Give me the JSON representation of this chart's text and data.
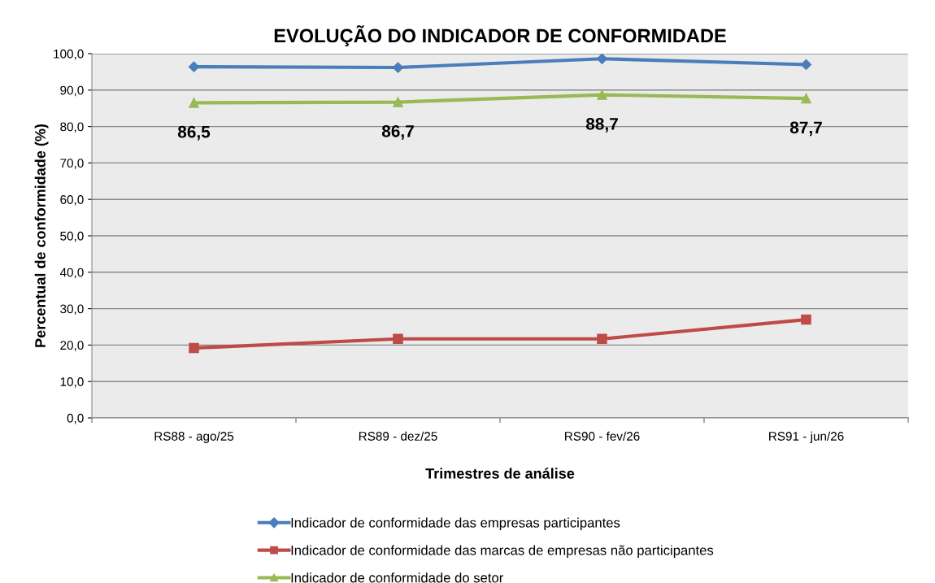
{
  "chart_data": {
    "type": "line",
    "title": "EVOLUÇÃO DO INDICADOR DE CONFORMIDADE",
    "xlabel": "Trimestres de análise",
    "ylabel": "Percentual de conformidade (%)",
    "categories": [
      "RS88 - ago/25",
      "RS89 - dez/25",
      "RS90 - fev/26",
      "RS91 - jun/26"
    ],
    "series": [
      {
        "name": "Indicador de conformidade das empresas participantes",
        "color": "#4a7ebb",
        "marker": "diamond",
        "values": [
          96.4,
          96.2,
          98.6,
          97.0
        ]
      },
      {
        "name": "Indicador de conformidade das marcas de empresas não participantes",
        "color": "#be4b48",
        "marker": "square",
        "values": [
          19.2,
          21.7,
          21.7,
          27.0
        ]
      },
      {
        "name": "Indicador de conformidade do setor",
        "color": "#98b954",
        "marker": "triangle",
        "values": [
          86.5,
          86.7,
          88.7,
          87.7
        ],
        "value_labels": [
          "86,5",
          "86,7",
          "88,7",
          "87,7"
        ]
      }
    ],
    "ylim": [
      0,
      100
    ],
    "yticks": [
      {
        "value": 0,
        "label": "0,0"
      },
      {
        "value": 10,
        "label": "10,0"
      },
      {
        "value": 20,
        "label": "20,0"
      },
      {
        "value": 30,
        "label": "30,0"
      },
      {
        "value": 40,
        "label": "40,0"
      },
      {
        "value": 50,
        "label": "50,0"
      },
      {
        "value": 60,
        "label": "60,0"
      },
      {
        "value": 70,
        "label": "70,0"
      },
      {
        "value": 80,
        "label": "80,0"
      },
      {
        "value": 90,
        "label": "90,0"
      },
      {
        "value": 100,
        "label": "100,0"
      }
    ],
    "grid": "y",
    "legend": "bottom",
    "line_style": "solid"
  }
}
